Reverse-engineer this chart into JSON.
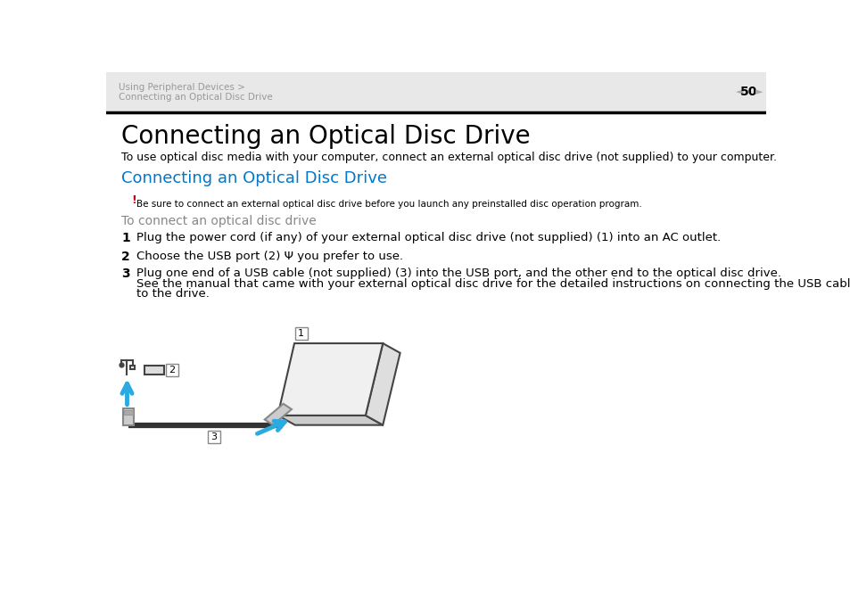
{
  "bg_color": "#ffffff",
  "header_breadcrumb_line1": "Using Peripheral Devices >",
  "header_breadcrumb_line2": "Connecting an Optical Disc Drive",
  "header_page": "50",
  "title_main": "Connecting an Optical Disc Drive",
  "subtitle_desc": "To use optical disc media with your computer, connect an external optical disc drive (not supplied) to your computer.",
  "section_title": "Connecting an Optical Disc Drive",
  "section_title_color": "#0077cc",
  "warning_exclamation": "!",
  "warning_exclamation_color": "#cc0000",
  "warning_text": "Be sure to connect an external optical disc drive before you launch any preinstalled disc operation program.",
  "subheading": "To connect an optical disc drive",
  "subheading_color": "#888888",
  "step1_num": "1",
  "step1_text": "Plug the power cord (if any) of your external optical disc drive (not supplied) (1) into an AC outlet.",
  "step2_num": "2",
  "step2_text": "Choose the USB port (2) Ψ you prefer to use.",
  "step3_num": "3",
  "step3_line1": "Plug one end of a USB cable (not supplied) (3) into the USB port, and the other end to the optical disc drive.",
  "step3_line2": "See the manual that came with your external optical disc drive for the detailed instructions on connecting the USB cable",
  "step3_line3": "to the drive.",
  "arrow_color": "#29abe2",
  "nav_arrow_color": "#aaaaaa",
  "text_color": "#000000",
  "breadcrumb_color": "#999999",
  "header_bg": "#e8e8e8",
  "label_border_color": "#888888",
  "cable_color": "#333333",
  "drive_face_color": "#f0f0f0",
  "drive_edge_color": "#444444",
  "drive_side_color": "#cccccc",
  "usb_color": "#444444"
}
